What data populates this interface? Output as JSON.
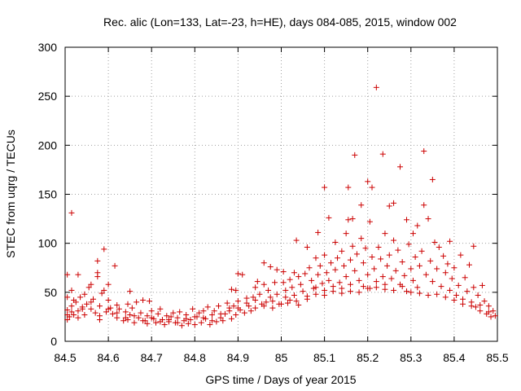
{
  "chart_data": {
    "type": "scatter",
    "title": "Rec. alic (Lon=133, Lat=-23, h=HE), days 084-085, 2015, window 002",
    "xlabel": "GPS time / Days of year 2015",
    "ylabel": "STEC from uqrg / TECUs",
    "xlim": [
      84.5,
      85.5
    ],
    "ylim": [
      0,
      300
    ],
    "x_ticks": [
      "84.5",
      "84.6",
      "84.7",
      "84.8",
      "84.9",
      "85",
      "85.1",
      "85.2",
      "85.3",
      "85.4",
      "85.5"
    ],
    "y_ticks": [
      "0",
      "50",
      "100",
      "150",
      "200",
      "250",
      "300"
    ],
    "grid": true,
    "marker": "+",
    "color": "#cc0000",
    "points": [
      [
        84.505,
        68
      ],
      [
        84.515,
        131
      ],
      [
        84.515,
        52
      ],
      [
        84.53,
        68
      ],
      [
        84.505,
        22
      ],
      [
        84.505,
        27
      ],
      [
        84.505,
        32
      ],
      [
        84.51,
        25
      ],
      [
        84.515,
        30
      ],
      [
        84.515,
        36
      ],
      [
        84.52,
        27
      ],
      [
        84.525,
        40
      ],
      [
        84.53,
        31
      ],
      [
        84.53,
        24
      ],
      [
        84.535,
        45
      ],
      [
        84.54,
        35
      ],
      [
        84.545,
        48
      ],
      [
        84.545,
        27
      ],
      [
        84.55,
        38
      ],
      [
        84.555,
        55
      ],
      [
        84.56,
        58
      ],
      [
        84.56,
        33
      ],
      [
        84.565,
        43
      ],
      [
        84.57,
        29
      ],
      [
        84.575,
        82
      ],
      [
        84.575,
        70
      ],
      [
        84.575,
        66
      ],
      [
        84.58,
        36
      ],
      [
        84.58,
        22
      ],
      [
        84.585,
        49
      ],
      [
        84.59,
        94
      ],
      [
        84.59,
        52
      ],
      [
        84.595,
        30
      ],
      [
        84.6,
        58
      ],
      [
        84.6,
        42
      ],
      [
        84.605,
        34
      ],
      [
        84.61,
        28
      ],
      [
        84.615,
        77
      ],
      [
        84.62,
        37
      ],
      [
        84.62,
        24
      ],
      [
        84.625,
        33
      ],
      [
        84.635,
        21
      ],
      [
        84.64,
        30
      ],
      [
        84.645,
        38
      ],
      [
        84.645,
        22
      ],
      [
        84.65,
        51
      ],
      [
        84.65,
        27
      ],
      [
        84.655,
        34
      ],
      [
        84.66,
        19
      ],
      [
        84.665,
        40
      ],
      [
        84.67,
        24
      ],
      [
        84.675,
        29
      ],
      [
        84.68,
        42
      ],
      [
        84.685,
        21
      ],
      [
        84.69,
        26
      ],
      [
        84.69,
        18
      ],
      [
        84.695,
        41
      ],
      [
        84.7,
        31
      ],
      [
        84.705,
        23
      ],
      [
        84.71,
        19
      ],
      [
        84.715,
        28
      ],
      [
        84.72,
        33
      ],
      [
        84.725,
        22
      ],
      [
        84.73,
        17
      ],
      [
        84.735,
        26
      ],
      [
        84.74,
        20
      ],
      [
        84.745,
        25
      ],
      [
        84.75,
        29
      ],
      [
        84.755,
        19
      ],
      [
        84.76,
        24
      ],
      [
        84.765,
        30
      ],
      [
        84.77,
        16
      ],
      [
        84.775,
        21
      ],
      [
        84.78,
        27
      ],
      [
        84.785,
        18
      ],
      [
        84.79,
        22
      ],
      [
        84.795,
        33
      ],
      [
        84.8,
        17
      ],
      [
        84.805,
        25
      ],
      [
        84.81,
        29
      ],
      [
        84.815,
        19
      ],
      [
        84.82,
        31
      ],
      [
        84.825,
        23
      ],
      [
        84.83,
        35
      ],
      [
        84.835,
        17
      ],
      [
        84.84,
        27
      ],
      [
        84.845,
        31
      ],
      [
        84.85,
        20
      ],
      [
        84.855,
        36
      ],
      [
        84.86,
        24
      ],
      [
        84.865,
        21
      ],
      [
        84.87,
        28
      ],
      [
        84.875,
        39
      ],
      [
        84.88,
        31
      ],
      [
        84.885,
        53
      ],
      [
        84.885,
        23
      ],
      [
        84.89,
        36
      ],
      [
        84.895,
        52
      ],
      [
        84.895,
        27
      ],
      [
        84.9,
        69
      ],
      [
        84.9,
        41
      ],
      [
        84.905,
        32
      ],
      [
        84.91,
        68
      ],
      [
        84.915,
        29
      ],
      [
        84.92,
        44
      ],
      [
        84.925,
        36
      ],
      [
        84.93,
        31
      ],
      [
        84.935,
        45
      ],
      [
        84.94,
        55
      ],
      [
        84.94,
        34
      ],
      [
        84.945,
        61
      ],
      [
        84.95,
        48
      ],
      [
        84.955,
        38
      ],
      [
        84.96,
        80
      ],
      [
        84.96,
        58
      ],
      [
        84.965,
        40
      ],
      [
        84.97,
        52
      ],
      [
        84.975,
        76
      ],
      [
        84.975,
        45
      ],
      [
        84.98,
        34
      ],
      [
        84.985,
        60
      ],
      [
        84.99,
        73
      ],
      [
        84.99,
        48
      ],
      [
        84.995,
        38
      ],
      [
        85.005,
        71
      ],
      [
        85.005,
        60
      ],
      [
        85.01,
        52
      ],
      [
        85.01,
        45
      ],
      [
        85.015,
        39
      ],
      [
        85.02,
        63
      ],
      [
        85.025,
        55
      ],
      [
        85.03,
        70
      ],
      [
        85.03,
        47
      ],
      [
        85.035,
        103
      ],
      [
        85.035,
        41
      ],
      [
        85.04,
        66
      ],
      [
        85.045,
        58
      ],
      [
        85.05,
        51
      ],
      [
        85.055,
        69
      ],
      [
        85.06,
        96
      ],
      [
        85.06,
        46
      ],
      [
        85.065,
        75
      ],
      [
        85.07,
        62
      ],
      [
        85.075,
        54
      ],
      [
        85.08,
        85
      ],
      [
        85.08,
        48
      ],
      [
        85.085,
        111
      ],
      [
        85.085,
        68
      ],
      [
        85.09,
        77
      ],
      [
        85.095,
        59
      ],
      [
        85.1,
        157
      ],
      [
        85.1,
        88
      ],
      [
        85.1,
        52
      ],
      [
        85.105,
        70
      ],
      [
        85.11,
        126
      ],
      [
        85.11,
        62
      ],
      [
        85.115,
        80
      ],
      [
        85.12,
        56
      ],
      [
        85.125,
        101
      ],
      [
        85.125,
        73
      ],
      [
        85.13,
        85
      ],
      [
        85.135,
        60
      ],
      [
        85.14,
        92
      ],
      [
        85.14,
        54
      ],
      [
        85.145,
        77
      ],
      [
        85.15,
        110
      ],
      [
        85.15,
        66
      ],
      [
        85.155,
        157
      ],
      [
        85.155,
        124
      ],
      [
        85.16,
        83
      ],
      [
        85.16,
        58
      ],
      [
        85.165,
        125
      ],
      [
        85.165,
        97
      ],
      [
        85.17,
        190
      ],
      [
        85.17,
        72
      ],
      [
        85.175,
        89
      ],
      [
        85.18,
        62
      ],
      [
        85.185,
        139
      ],
      [
        85.185,
        105
      ],
      [
        85.19,
        80
      ],
      [
        85.19,
        56
      ],
      [
        85.195,
        95
      ],
      [
        85.2,
        163
      ],
      [
        85.2,
        68
      ],
      [
        85.205,
        122
      ],
      [
        85.205,
        54
      ],
      [
        85.21,
        157
      ],
      [
        85.21,
        86
      ],
      [
        85.215,
        74
      ],
      [
        85.22,
        259
      ],
      [
        85.22,
        61
      ],
      [
        85.225,
        96
      ],
      [
        85.23,
        84
      ],
      [
        85.235,
        191
      ],
      [
        85.235,
        66
      ],
      [
        85.24,
        110
      ],
      [
        85.24,
        53
      ],
      [
        85.245,
        77
      ],
      [
        85.25,
        138
      ],
      [
        85.25,
        88
      ],
      [
        85.255,
        64
      ],
      [
        85.26,
        141
      ],
      [
        85.26,
        103
      ],
      [
        85.265,
        72
      ],
      [
        85.27,
        93
      ],
      [
        85.275,
        178
      ],
      [
        85.275,
        58
      ],
      [
        85.28,
        81
      ],
      [
        85.285,
        67
      ],
      [
        85.29,
        124
      ],
      [
        85.29,
        51
      ],
      [
        85.295,
        99
      ],
      [
        85.3,
        74
      ],
      [
        85.305,
        110
      ],
      [
        85.305,
        62
      ],
      [
        85.31,
        86
      ],
      [
        85.315,
        118
      ],
      [
        85.315,
        55
      ],
      [
        85.32,
        77
      ],
      [
        85.325,
        92
      ],
      [
        85.33,
        194
      ],
      [
        85.33,
        139
      ],
      [
        85.335,
        68
      ],
      [
        85.34,
        125
      ],
      [
        85.345,
        82
      ],
      [
        85.35,
        165
      ],
      [
        85.35,
        61
      ],
      [
        85.355,
        101
      ],
      [
        85.36,
        74
      ],
      [
        85.365,
        96
      ],
      [
        85.37,
        56
      ],
      [
        85.375,
        87
      ],
      [
        85.38,
        70
      ],
      [
        85.385,
        79
      ],
      [
        85.39,
        102
      ],
      [
        85.39,
        52
      ],
      [
        85.395,
        64
      ],
      [
        85.4,
        75
      ],
      [
        85.405,
        47
      ],
      [
        85.41,
        57
      ],
      [
        85.415,
        88
      ],
      [
        85.42,
        43
      ],
      [
        85.425,
        65
      ],
      [
        85.43,
        51
      ],
      [
        85.435,
        78
      ],
      [
        85.44,
        40
      ],
      [
        85.445,
        97
      ],
      [
        85.445,
        55
      ],
      [
        85.45,
        35
      ],
      [
        85.455,
        47
      ],
      [
        85.46,
        31
      ],
      [
        85.465,
        57
      ],
      [
        85.47,
        41
      ],
      [
        85.475,
        28
      ],
      [
        85.48,
        36
      ],
      [
        85.485,
        25
      ],
      [
        85.49,
        31
      ],
      [
        85.495,
        26
      ],
      [
        84.505,
        45
      ],
      [
        84.52,
        42
      ],
      [
        84.54,
        33
      ],
      [
        84.56,
        40
      ],
      [
        84.58,
        26
      ],
      [
        84.6,
        33
      ],
      [
        84.62,
        29
      ],
      [
        84.64,
        24
      ],
      [
        84.66,
        26
      ],
      [
        84.68,
        21
      ],
      [
        84.7,
        24
      ],
      [
        84.72,
        20
      ],
      [
        84.74,
        22
      ],
      [
        84.76,
        19
      ],
      [
        84.78,
        23
      ],
      [
        84.8,
        25
      ],
      [
        84.82,
        24
      ],
      [
        84.84,
        21
      ],
      [
        84.86,
        28
      ],
      [
        84.88,
        34
      ],
      [
        84.9,
        34
      ],
      [
        84.92,
        39
      ],
      [
        84.94,
        42
      ],
      [
        84.96,
        36
      ],
      [
        84.98,
        41
      ],
      [
        85.0,
        38
      ],
      [
        85.02,
        42
      ],
      [
        85.04,
        37
      ],
      [
        85.06,
        43
      ],
      [
        85.08,
        55
      ],
      [
        85.1,
        47
      ],
      [
        85.12,
        51
      ],
      [
        85.14,
        49
      ],
      [
        85.16,
        51
      ],
      [
        85.18,
        50
      ],
      [
        85.2,
        54
      ],
      [
        85.22,
        55
      ],
      [
        85.24,
        58
      ],
      [
        85.26,
        52
      ],
      [
        85.28,
        56
      ],
      [
        85.3,
        50
      ],
      [
        85.32,
        49
      ],
      [
        85.34,
        47
      ],
      [
        85.36,
        48
      ],
      [
        85.38,
        45
      ],
      [
        85.4,
        42
      ],
      [
        85.42,
        38
      ],
      [
        85.44,
        36
      ],
      [
        85.46,
        37
      ],
      [
        85.48,
        30
      ]
    ]
  }
}
